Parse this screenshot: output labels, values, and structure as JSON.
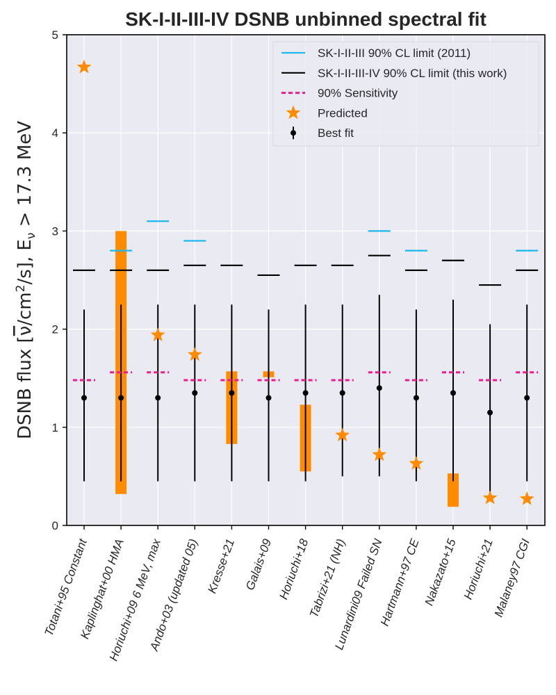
{
  "chart_data": {
    "type": "errorbar",
    "title": "SK-I-II-III-IV DSNB unbinned spectral fit",
    "ylabel_main": "DSNB flux [",
    "ylabel_nu": "ν",
    "ylabel_rest": "/cm",
    "ylabel_sup": "2",
    "ylabel_tail": "/s], E",
    "ylabel_sub": "ν",
    "ylabel_end": " > 17.3 MeV",
    "xlabel": "",
    "ylim": [
      0,
      5
    ],
    "yticks": [
      "0",
      "1",
      "2",
      "3",
      "4",
      "5"
    ],
    "grid": true,
    "categories": [
      "Totani+95 Constant",
      "Kaplinghat+00 HMA",
      "Horiuchi+09 6 MeV, max",
      "Ando+03 (updated 05)",
      "Kresse+21",
      "Galais+09",
      "Horiuchi+18",
      "Tabrizi+21 (NH)",
      "Lunardini09 Failed SN",
      "Hartmann+97 CE",
      "Nakazato+15",
      "Horiuchi+21",
      "Malaney97 CGI"
    ],
    "legend": {
      "position": "top-right",
      "entries": [
        {
          "label": "SK-I-II-III 90% CL limit (2011)",
          "marker": "line",
          "color": "#1cb8f0"
        },
        {
          "label": "SK-I-II-III-IV 90% CL limit (this work)",
          "marker": "line",
          "color": "#000000"
        },
        {
          "label": "90% Sensitivity",
          "marker": "dashed",
          "color": "#f01a8c"
        },
        {
          "label": "Predicted",
          "marker": "star",
          "color": "#ff8c00"
        },
        {
          "label": "Best fit",
          "marker": "errorbar",
          "color": "#000000"
        }
      ]
    },
    "series": [
      {
        "name": "SK-I-II-III 90% CL limit (2011)",
        "color": "#1cb8f0",
        "values": [
          null,
          2.8,
          3.1,
          2.9,
          null,
          null,
          null,
          null,
          3.0,
          2.8,
          null,
          null,
          2.8
        ]
      },
      {
        "name": "SK-I-II-III-IV 90% CL limit (this work)",
        "color": "#000000",
        "values": [
          2.6,
          2.6,
          2.6,
          2.65,
          2.65,
          2.55,
          2.65,
          2.65,
          2.75,
          2.6,
          2.7,
          2.45,
          2.6
        ]
      },
      {
        "name": "90% Sensitivity",
        "color": "#f01a8c",
        "values": [
          1.48,
          1.56,
          1.56,
          1.48,
          1.48,
          1.48,
          1.48,
          1.48,
          1.56,
          1.48,
          1.56,
          1.48,
          1.56
        ]
      },
      {
        "name": "Predicted",
        "color": "#ff8c00",
        "values": [
          4.67,
          null,
          1.94,
          1.74,
          null,
          null,
          null,
          0.92,
          0.72,
          0.63,
          null,
          0.28,
          0.27
        ]
      },
      {
        "name": "Predicted range",
        "color": "#ff8c00",
        "ranges": [
          null,
          [
            0.32,
            3.0
          ],
          null,
          null,
          [
            0.83,
            1.57
          ],
          [
            1.51,
            1.57
          ],
          [
            0.55,
            1.23
          ],
          null,
          null,
          null,
          [
            0.19,
            0.53
          ],
          null,
          null
        ]
      },
      {
        "name": "Best fit",
        "color": "#000000",
        "values": [
          1.3,
          1.3,
          1.3,
          1.35,
          1.35,
          1.3,
          1.35,
          1.35,
          1.4,
          1.3,
          1.35,
          1.15,
          1.3
        ],
        "lower": [
          0.45,
          0.45,
          0.45,
          0.45,
          0.45,
          0.45,
          0.45,
          0.5,
          0.5,
          0.45,
          0.45,
          0.3,
          0.45
        ],
        "upper": [
          2.2,
          2.25,
          2.25,
          2.25,
          2.25,
          2.2,
          2.25,
          2.25,
          2.35,
          2.2,
          2.3,
          2.05,
          2.25
        ]
      }
    ]
  }
}
